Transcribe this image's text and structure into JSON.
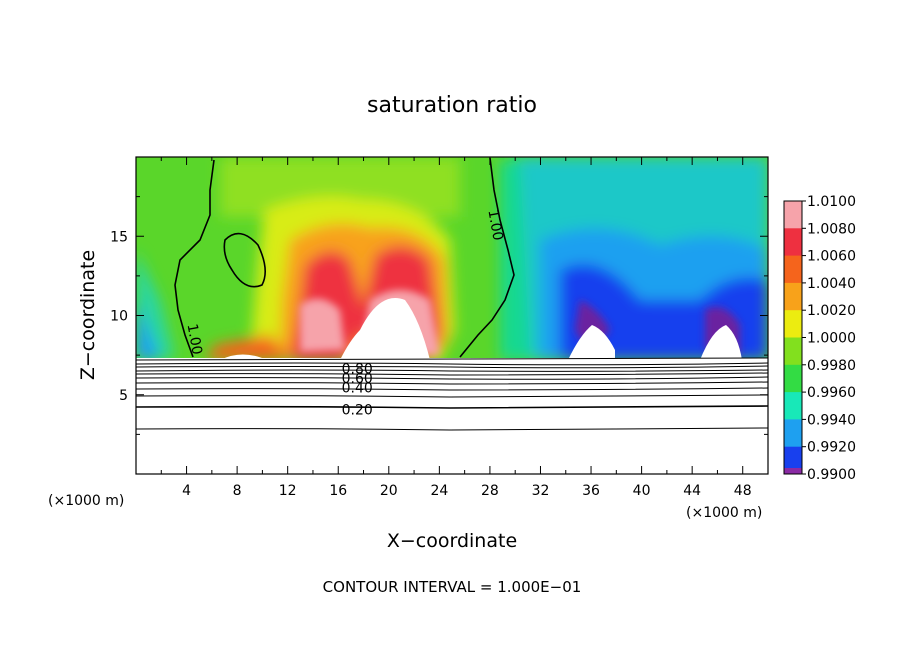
{
  "chart_data": {
    "type": "heatmap",
    "title": "saturation ratio",
    "xlabel": "X−coordinate",
    "ylabel": "Z−coordinate",
    "x_unit_label": "(×1000 m)",
    "y_unit_label": "(×1000 m)",
    "xlim": [
      0,
      50
    ],
    "ylim": [
      0,
      20
    ],
    "x_ticks": [
      4,
      8,
      12,
      16,
      20,
      24,
      28,
      32,
      36,
      40,
      44,
      48
    ],
    "y_ticks": [
      5,
      10,
      15
    ],
    "footer": "CONTOUR INTERVAL = 1.000E−01",
    "colorbar": {
      "labels": [
        "1.0100",
        "1.0080",
        "1.0060",
        "1.0040",
        "1.0020",
        "1.0000",
        "0.9980",
        "0.9960",
        "0.9940",
        "0.9920",
        "0.9900"
      ],
      "colors": [
        "#f6a3aa",
        "#ee3040",
        "#f5641c",
        "#f8a21a",
        "#ecec10",
        "#82e01e",
        "#33dc44",
        "#18e8b8",
        "#1ea0f0",
        "#1840ee",
        "#8a2aa4"
      ]
    },
    "contour_labels": [
      {
        "text": "1.00",
        "x": 4.6,
        "z": 8.5,
        "rotate": 80
      },
      {
        "text": "1.00",
        "x": 28.4,
        "z": 15.7,
        "rotate": 80
      },
      {
        "text": "0.80",
        "x": 17.5,
        "z": 6.6,
        "rotate": 0
      },
      {
        "text": "0.60",
        "x": 17.5,
        "z": 6.0,
        "rotate": 0
      },
      {
        "text": "0.40",
        "x": 17.5,
        "z": 5.4,
        "rotate": 0
      },
      {
        "text": "0.20",
        "x": 17.5,
        "z": 4.0,
        "rotate": 0
      }
    ]
  }
}
